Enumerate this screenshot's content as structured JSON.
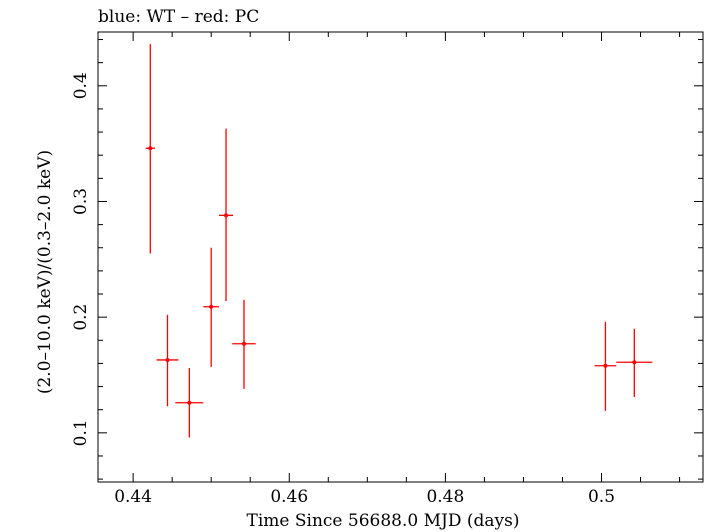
{
  "chart_data": {
    "type": "scatter",
    "title": "blue: WT – red: PC",
    "xlabel": "Time Since 56688.0 MJD (days)",
    "ylabel": "(2.0–10.0 keV)/(0.3–2.0 keV)",
    "xlim": [
      0.4355,
      0.513
    ],
    "ylim": [
      0.0575,
      0.4465
    ],
    "xticks": [
      0.44,
      0.46,
      0.48,
      0.5
    ],
    "xtick_labels": [
      "0.44",
      "0.46",
      "0.48",
      "0.5"
    ],
    "yticks": [
      0.1,
      0.2,
      0.3,
      0.4
    ],
    "ytick_labels": [
      "0.1",
      "0.2",
      "0.3",
      "0.4"
    ],
    "grid": false,
    "series": [
      {
        "color": "#ff0000",
        "points": [
          {
            "x": 0.4422,
            "y": 0.346,
            "xerr": 0.0006,
            "ylo": 0.255,
            "yhi": 0.436
          },
          {
            "x": 0.4444,
            "y": 0.163,
            "xerr": 0.0014,
            "ylo": 0.123,
            "yhi": 0.202
          },
          {
            "x": 0.4472,
            "y": 0.126,
            "xerr": 0.0018,
            "ylo": 0.096,
            "yhi": 0.156
          },
          {
            "x": 0.45,
            "y": 0.209,
            "xerr": 0.001,
            "ylo": 0.157,
            "yhi": 0.26
          },
          {
            "x": 0.4519,
            "y": 0.288,
            "xerr": 0.0009,
            "ylo": 0.214,
            "yhi": 0.363
          },
          {
            "x": 0.4542,
            "y": 0.177,
            "xerr": 0.0015,
            "ylo": 0.138,
            "yhi": 0.215
          },
          {
            "x": 0.5005,
            "y": 0.158,
            "xerr": 0.0014,
            "ylo": 0.119,
            "yhi": 0.196
          },
          {
            "x": 0.5042,
            "y": 0.161,
            "xerr": 0.0023,
            "ylo": 0.131,
            "yhi": 0.19
          }
        ]
      }
    ]
  }
}
